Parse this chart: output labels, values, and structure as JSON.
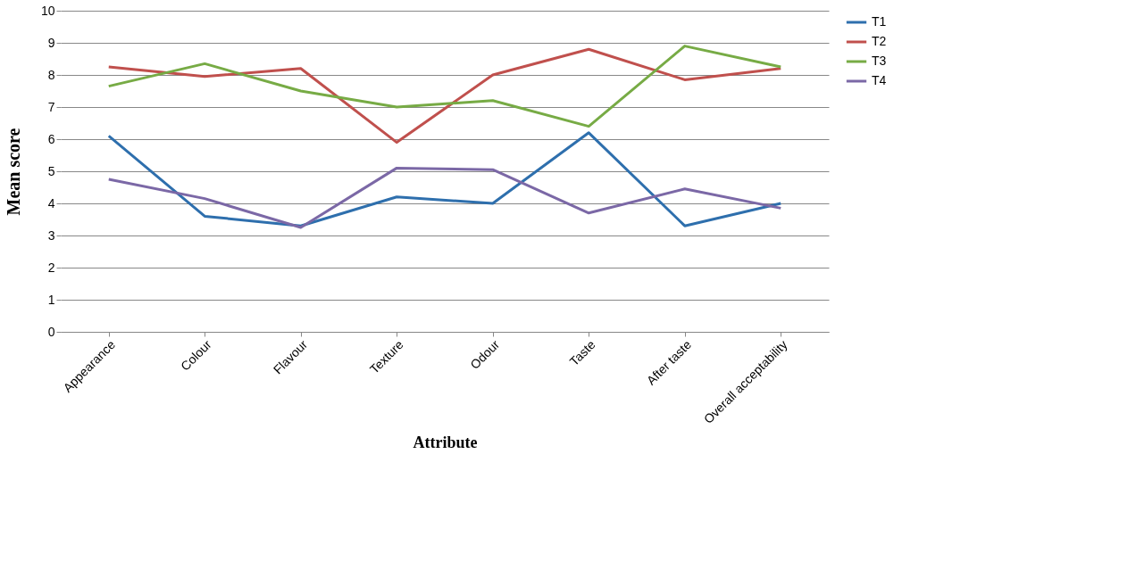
{
  "chart_data": {
    "type": "line",
    "xlabel": "Attribute",
    "ylabel": "Mean score",
    "categories": [
      "Appearance",
      "Colour",
      "Flavour",
      "Texture",
      "Odour",
      "Taste",
      "After taste",
      "Overall acceptability"
    ],
    "series": [
      {
        "name": "T1",
        "color": "#2e6fad",
        "values": [
          6.1,
          3.6,
          3.3,
          4.2,
          4.0,
          6.2,
          3.3,
          4.0
        ]
      },
      {
        "name": "T2",
        "color": "#c0504d",
        "values": [
          8.25,
          7.95,
          8.2,
          5.9,
          8.0,
          8.8,
          7.85,
          8.2
        ]
      },
      {
        "name": "T3",
        "color": "#77ab45",
        "values": [
          7.65,
          8.35,
          7.5,
          7.0,
          7.2,
          6.4,
          8.9,
          8.25
        ]
      },
      {
        "name": "T4",
        "color": "#7b68a6",
        "values": [
          4.75,
          4.15,
          3.25,
          5.1,
          5.05,
          3.7,
          4.45,
          3.85
        ]
      }
    ],
    "ylim": [
      0,
      10
    ],
    "yticks": [
      0,
      1,
      2,
      3,
      4,
      5,
      6,
      7,
      8,
      9,
      10
    ],
    "grid": "y",
    "legend": "right",
    "marker": "none",
    "line_style": "solid"
  }
}
